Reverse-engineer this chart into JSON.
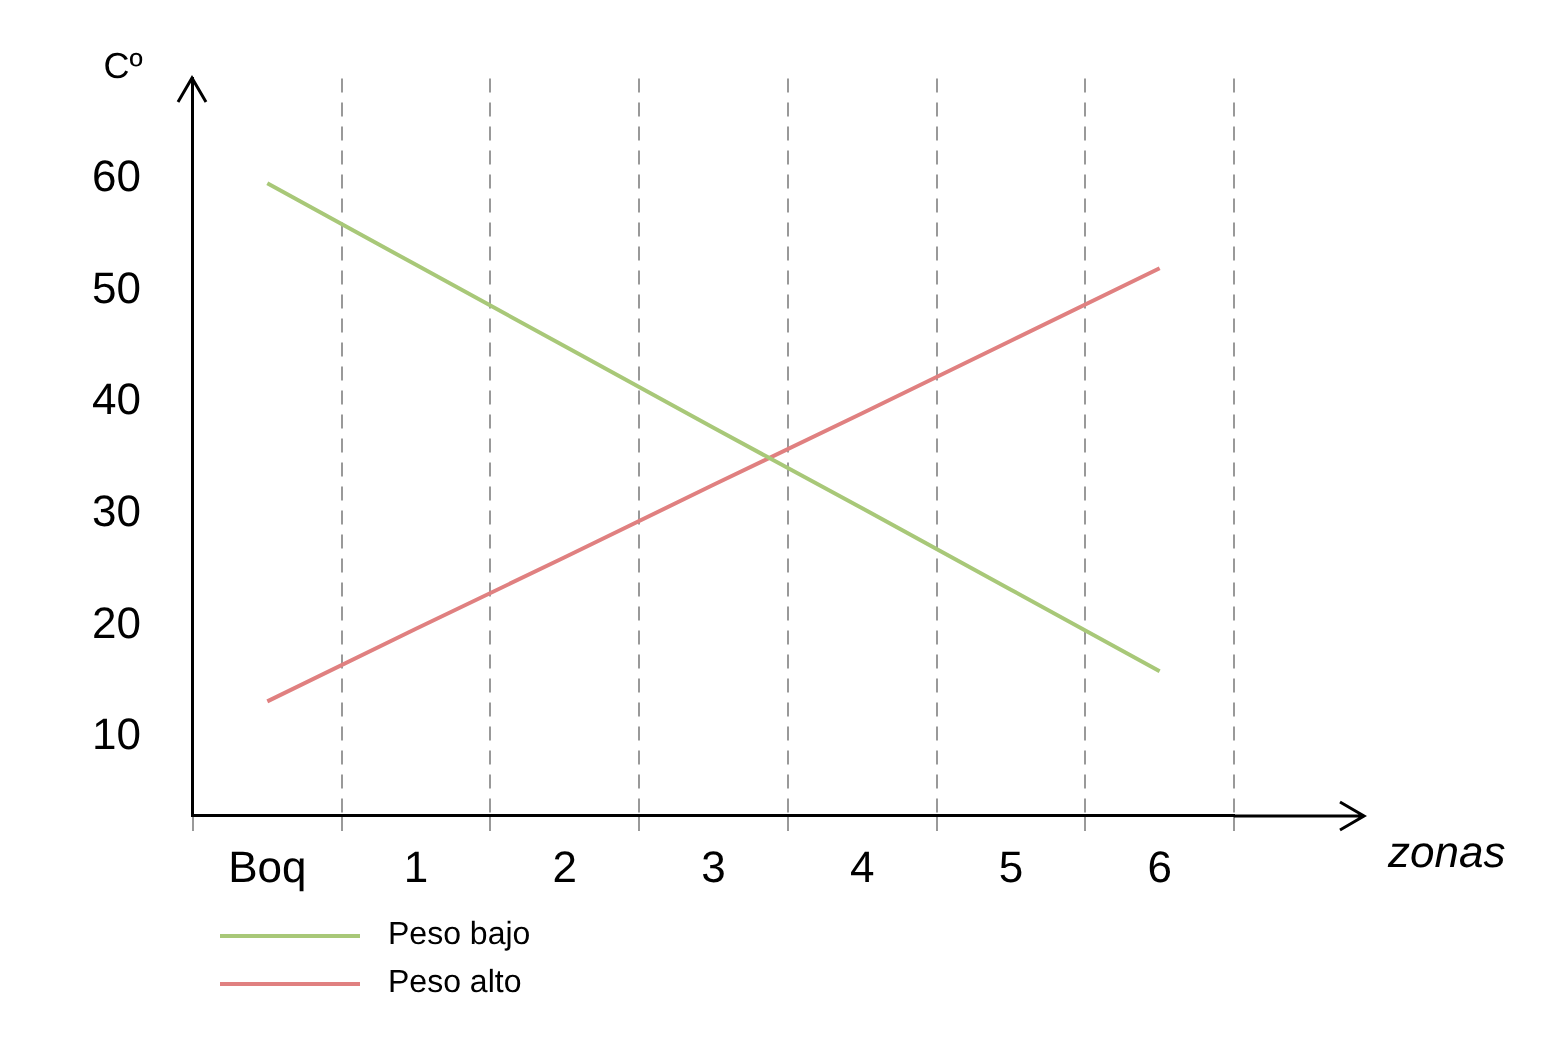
{
  "chart_data": {
    "type": "line",
    "xlabel": "zonas",
    "ylabel": "Cº",
    "categories": [
      "Boq",
      "1",
      "2",
      "3",
      "4",
      "5",
      "6"
    ],
    "series": [
      {
        "name": "Peso bajo",
        "color": "#a8c878",
        "values": [
          59.6,
          52.3,
          45.0,
          37.7,
          30.5,
          23.2,
          15.9
        ]
      },
      {
        "name": "Peso alto",
        "color": "#e08080",
        "values": [
          13.2,
          19.7,
          26.1,
          32.6,
          39.0,
          45.5,
          52.0
        ]
      }
    ],
    "ylim": [
      3,
      69
    ],
    "yticks": [
      10,
      20,
      30,
      40,
      50,
      60
    ],
    "grid": "x",
    "legend": "bottom left",
    "marker": "none",
    "line_style": "solid"
  }
}
